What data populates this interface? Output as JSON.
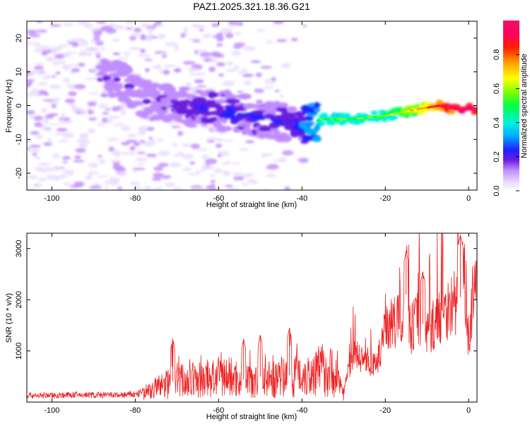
{
  "title": "PAZ1.2025.321.18.36.G21",
  "chart_data": [
    {
      "type": "heatmap",
      "name": "spectrogram",
      "xlabel": "Height of straight line (km)",
      "ylabel": "Frequency (Hz)",
      "xlim": [
        -106,
        2
      ],
      "ylim": [
        -25,
        25
      ],
      "xticks": [
        -100,
        -80,
        -60,
        -40,
        -20,
        0
      ],
      "yticks": [
        -20,
        -10,
        0,
        10,
        20
      ],
      "colorbar": {
        "label": "Normalized spectral amplitude",
        "range": [
          0,
          1
        ],
        "ticks": [
          0.0,
          0.2,
          0.4,
          0.6,
          0.8
        ]
      },
      "ridge": [
        {
          "height_km": -84,
          "freq_hz": 8,
          "amplitude": 0.18
        },
        {
          "height_km": -78,
          "freq_hz": 2,
          "amplitude": 0.15
        },
        {
          "height_km": -70,
          "freq_hz": 0,
          "amplitude": 0.22
        },
        {
          "height_km": -62,
          "freq_hz": -1,
          "amplitude": 0.25
        },
        {
          "height_km": -55,
          "freq_hz": -2,
          "amplitude": 0.26
        },
        {
          "height_km": -48,
          "freq_hz": -4,
          "amplitude": 0.22
        },
        {
          "height_km": -40,
          "freq_hz": -6,
          "amplitude": 0.28
        },
        {
          "height_km": -35,
          "freq_hz": -4,
          "amplitude": 0.5
        },
        {
          "height_km": -28,
          "freq_hz": -4,
          "amplitude": 0.5
        },
        {
          "height_km": -20,
          "freq_hz": -3,
          "amplitude": 0.52
        },
        {
          "height_km": -12,
          "freq_hz": -1,
          "amplitude": 0.7
        },
        {
          "height_km": -7,
          "freq_hz": 0,
          "amplitude": 0.85
        },
        {
          "height_km": -3,
          "freq_hz": -1,
          "amplitude": 0.95
        },
        {
          "height_km": 2,
          "freq_hz": -1,
          "amplitude": 0.95
        }
      ]
    },
    {
      "type": "line",
      "name": "snr",
      "xlabel": "Height of straight line (km)",
      "ylabel": "SNR (10 * v/v)",
      "xlim": [
        -106,
        2
      ],
      "ylim": [
        0,
        3300
      ],
      "xticks": [
        -100,
        -80,
        -60,
        -40,
        -20,
        0
      ],
      "yticks": [
        1000,
        2000,
        3000
      ],
      "series": [
        {
          "name": "SNR",
          "color": "#ee2222",
          "x": [
            -106,
            -100,
            -95,
            -90,
            -85,
            -80,
            -76,
            -72,
            -70,
            -66,
            -62,
            -58,
            -54,
            -50,
            -46,
            -42,
            -38,
            -35,
            -32,
            -30,
            -28,
            -25,
            -22,
            -20,
            -18,
            -16,
            -15,
            -14,
            -12,
            -10,
            -8,
            -6,
            -4,
            -2,
            -1,
            0,
            1,
            2
          ],
          "values": [
            130,
            130,
            140,
            140,
            135,
            150,
            240,
            380,
            430,
            420,
            460,
            500,
            440,
            500,
            420,
            560,
            540,
            640,
            560,
            200,
            920,
            840,
            680,
            1580,
            1500,
            1750,
            2100,
            1400,
            1700,
            1350,
            1550,
            1800,
            1900,
            2050,
            2600,
            1200,
            2050,
            2150
          ],
          "peaks": [
            {
              "x": -71,
              "y": 1240
            },
            {
              "x": -54,
              "y": 1230
            },
            {
              "x": -50,
              "y": 1310
            },
            {
              "x": -43,
              "y": 1450
            },
            {
              "x": -15,
              "y": 2950
            },
            {
              "x": -11,
              "y": 2550
            },
            {
              "x": -2,
              "y": 3270
            }
          ]
        }
      ]
    }
  ]
}
